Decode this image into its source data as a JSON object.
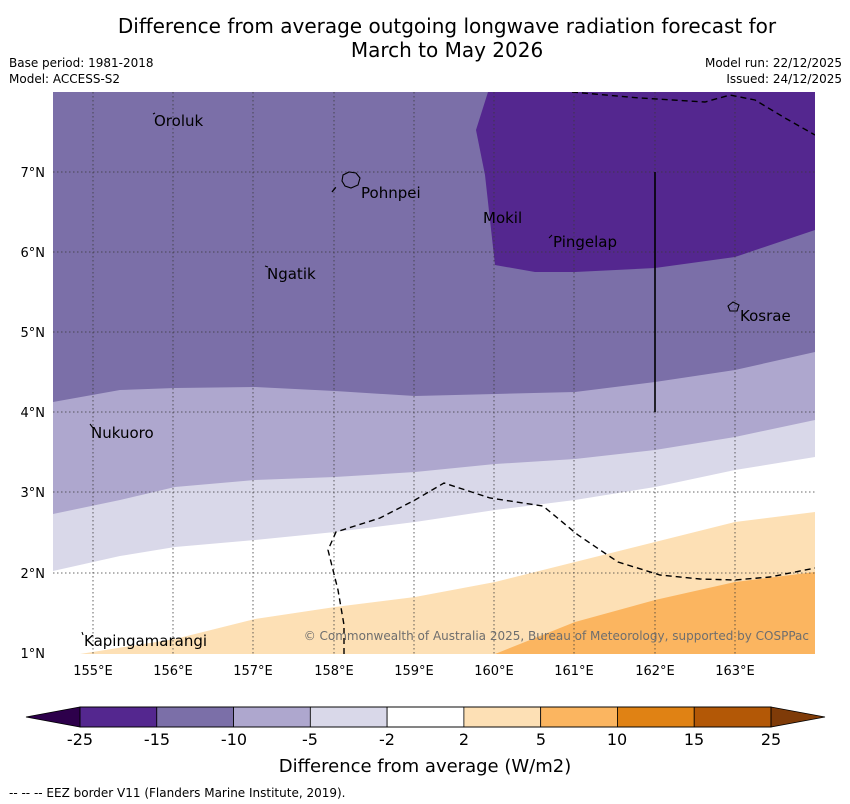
{
  "title": {
    "line1": "Difference from average outgoing longwave radiation forecast for",
    "line2": "March to May 2026"
  },
  "meta": {
    "base_period": "Base period: 1981-2018",
    "model": "Model: ACCESS-S2",
    "model_run": "Model run: 22/12/2025",
    "issued": "Issued: 24/12/2025"
  },
  "map": {
    "lon_ticks": [
      "155°E",
      "156°E",
      "157°E",
      "158°E",
      "159°E",
      "160°E",
      "161°E",
      "162°E",
      "163°E"
    ],
    "lat_ticks": [
      "7°N",
      "6°N",
      "5°N",
      "4°N",
      "3°N",
      "2°N",
      "1°N"
    ],
    "places": {
      "oroluk": "Oroluk",
      "pohnpei": "Pohnpei",
      "mokil": "Mokil",
      "pingelap": "Pingelap",
      "ngatik": "Ngatik",
      "kosrae": "Kosrae",
      "nukuoro": "Nukuoro",
      "kapingamarangi": "Kapingamarangi"
    },
    "copyright": "© Commonwealth of Australia 2025, Bureau of Meteorology, supported by COSPPac"
  },
  "colorbar": {
    "ticks": [
      "-25",
      "-15",
      "-10",
      "-5",
      "-2",
      "2",
      "5",
      "10",
      "15",
      "25"
    ],
    "colors": [
      "#54278f",
      "#7b6fa8",
      "#aea7ce",
      "#d9d8e9",
      "#ffffff",
      "#fde0b5",
      "#fbb560",
      "#e08214",
      "#b35806"
    ],
    "extend_low": "#2d004b",
    "extend_high": "#7f3b08",
    "label": "Difference from average (W/m2)"
  },
  "footer": "--  --  -- EEZ border V11 (Flanders Marine Institute, 2019)."
}
